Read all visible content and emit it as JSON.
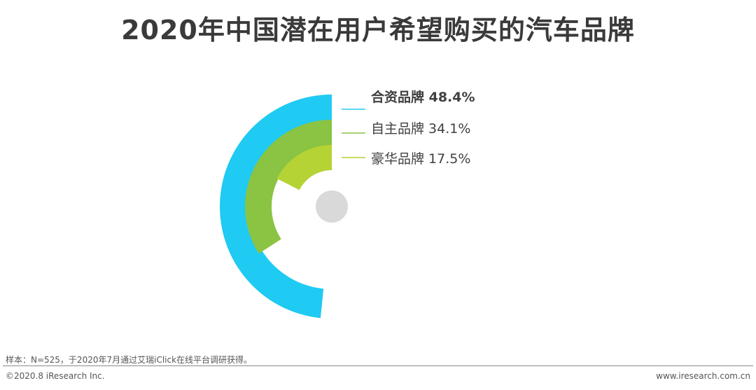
{
  "page": {
    "title": "2020年中国潜在用户希望购买的汽车品牌",
    "footnote": "样本：N=525，于2020年7月通过艾瑞iClick在线平台调研获得。",
    "copyright": "©2020.8 iResearch Inc.",
    "website": "www.iresearch.com.cn"
  },
  "chart_data": {
    "type": "radial-bar",
    "unit": "%",
    "max": 100,
    "series": [
      {
        "name": "合资品牌",
        "value": 48.4,
        "label": "合资品牌 48.4%",
        "color": "#1fcaf3",
        "emphasis": true
      },
      {
        "name": "自主品牌",
        "value": 34.1,
        "label": "自主品牌 34.1%",
        "color": "#8bc342",
        "emphasis": false
      },
      {
        "name": "豪华品牌",
        "value": 17.5,
        "label": "豪华品牌 17.5%",
        "color": "#b5d334",
        "emphasis": false
      }
    ],
    "center_color": "#d9d9d9"
  }
}
